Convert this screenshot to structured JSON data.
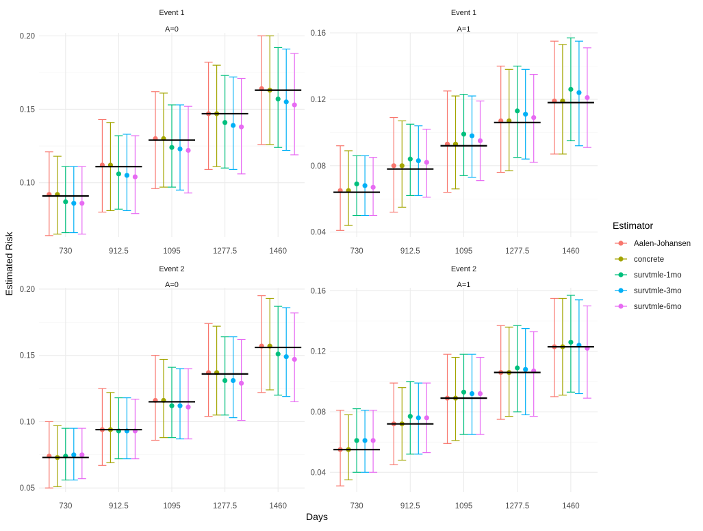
{
  "axis_labels": {
    "x": "Days",
    "y": "Estimated Risk"
  },
  "legend": {
    "title": "Estimator",
    "position": "right",
    "entries": [
      "Aalen-Johansen",
      "concrete",
      "survtmle-1mo",
      "survtmle-3mo",
      "survtmle-6mo"
    ]
  },
  "colors": {
    "Aalen-Johansen": "#F8766D",
    "concrete": "#A3A500",
    "survtmle-1mo": "#00BF7D",
    "survtmle-3mo": "#00B0F6",
    "survtmle-6mo": "#E76BF3",
    "truth_line": "#000000",
    "grid": "#EBEBEB"
  },
  "chart_data": [
    {
      "type": "scatter",
      "facet": {
        "event": "Event 1",
        "group": "A=0"
      },
      "categories": [
        "730",
        "912.5",
        "1095",
        "1277.5",
        "1460"
      ],
      "ylim": [
        0.063,
        0.202
      ],
      "yticks": [
        0.1,
        0.15,
        0.2
      ],
      "ytick_labels": [
        "0.10",
        "0.15",
        "0.20"
      ],
      "grid": true,
      "truth": [
        0.091,
        0.111,
        0.129,
        0.147,
        0.163
      ],
      "series": [
        {
          "name": "Aalen-Johansen",
          "estimate": [
            0.092,
            0.112,
            0.13,
            0.147,
            0.164
          ],
          "lower": [
            0.064,
            0.08,
            0.096,
            0.109,
            0.126
          ],
          "upper": [
            0.121,
            0.143,
            0.162,
            0.182,
            0.2
          ]
        },
        {
          "name": "concrete",
          "estimate": [
            0.092,
            0.112,
            0.13,
            0.147,
            0.163
          ],
          "lower": [
            0.065,
            0.081,
            0.097,
            0.111,
            0.126
          ],
          "upper": [
            0.118,
            0.141,
            0.161,
            0.18,
            0.2
          ]
        },
        {
          "name": "survtmle-1mo",
          "estimate": [
            0.087,
            0.106,
            0.124,
            0.141,
            0.157
          ],
          "lower": [
            0.066,
            0.082,
            0.097,
            0.11,
            0.124
          ],
          "upper": [
            0.111,
            0.132,
            0.153,
            0.173,
            0.192
          ]
        },
        {
          "name": "survtmle-3mo",
          "estimate": [
            0.086,
            0.105,
            0.123,
            0.139,
            0.155
          ],
          "lower": [
            0.066,
            0.081,
            0.095,
            0.109,
            0.122
          ],
          "upper": [
            0.111,
            0.133,
            0.153,
            0.172,
            0.191
          ]
        },
        {
          "name": "survtmle-6mo",
          "estimate": [
            0.086,
            0.104,
            0.122,
            0.138,
            0.153
          ],
          "lower": [
            0.065,
            0.079,
            0.093,
            0.106,
            0.119
          ],
          "upper": [
            0.111,
            0.132,
            0.152,
            0.171,
            0.188
          ]
        }
      ]
    },
    {
      "type": "scatter",
      "facet": {
        "event": "Event 1",
        "group": "A=1"
      },
      "categories": [
        "730",
        "912.5",
        "1095",
        "1277.5",
        "1460"
      ],
      "ylim": [
        0.037,
        0.16
      ],
      "yticks": [
        0.04,
        0.08,
        0.12,
        0.16
      ],
      "ytick_labels": [
        "0.04",
        "0.08",
        "0.12",
        "0.16"
      ],
      "grid": true,
      "truth": [
        0.064,
        0.078,
        0.092,
        0.106,
        0.118
      ],
      "series": [
        {
          "name": "Aalen-Johansen",
          "estimate": [
            0.065,
            0.08,
            0.093,
            0.107,
            0.119
          ],
          "lower": [
            0.041,
            0.052,
            0.064,
            0.076,
            0.087
          ],
          "upper": [
            0.092,
            0.109,
            0.125,
            0.14,
            0.155
          ]
        },
        {
          "name": "concrete",
          "estimate": [
            0.065,
            0.08,
            0.093,
            0.107,
            0.119
          ],
          "lower": [
            0.044,
            0.055,
            0.066,
            0.077,
            0.087
          ],
          "upper": [
            0.089,
            0.107,
            0.122,
            0.138,
            0.153
          ]
        },
        {
          "name": "survtmle-1mo",
          "estimate": [
            0.069,
            0.084,
            0.099,
            0.113,
            0.126
          ],
          "lower": [
            0.05,
            0.062,
            0.074,
            0.085,
            0.095
          ],
          "upper": [
            0.086,
            0.105,
            0.123,
            0.14,
            0.157
          ]
        },
        {
          "name": "survtmle-3mo",
          "estimate": [
            0.068,
            0.083,
            0.098,
            0.111,
            0.124
          ],
          "lower": [
            0.05,
            0.062,
            0.073,
            0.084,
            0.092
          ],
          "upper": [
            0.086,
            0.104,
            0.122,
            0.138,
            0.155
          ]
        },
        {
          "name": "survtmle-6mo",
          "estimate": [
            0.067,
            0.082,
            0.095,
            0.109,
            0.121
          ],
          "lower": [
            0.05,
            0.061,
            0.071,
            0.082,
            0.091
          ],
          "upper": [
            0.085,
            0.102,
            0.119,
            0.135,
            0.151
          ]
        }
      ]
    },
    {
      "type": "scatter",
      "facet": {
        "event": "Event 2",
        "group": "A=0"
      },
      "categories": [
        "730",
        "912.5",
        "1095",
        "1277.5",
        "1460"
      ],
      "ylim": [
        0.047,
        0.201
      ],
      "yticks": [
        0.05,
        0.1,
        0.15,
        0.2
      ],
      "ytick_labels": [
        "0.05",
        "0.10",
        "0.15",
        "0.20"
      ],
      "grid": true,
      "truth": [
        0.073,
        0.094,
        0.115,
        0.136,
        0.156
      ],
      "series": [
        {
          "name": "Aalen-Johansen",
          "estimate": [
            0.074,
            0.094,
            0.116,
            0.137,
            0.157
          ],
          "lower": [
            0.05,
            0.067,
            0.086,
            0.104,
            0.122
          ],
          "upper": [
            0.1,
            0.125,
            0.15,
            0.174,
            0.195
          ]
        },
        {
          "name": "concrete",
          "estimate": [
            0.073,
            0.094,
            0.116,
            0.137,
            0.157
          ],
          "lower": [
            0.051,
            0.069,
            0.088,
            0.105,
            0.124
          ],
          "upper": [
            0.097,
            0.122,
            0.147,
            0.172,
            0.193
          ]
        },
        {
          "name": "survtmle-1mo",
          "estimate": [
            0.074,
            0.093,
            0.112,
            0.131,
            0.151
          ],
          "lower": [
            0.056,
            0.072,
            0.088,
            0.105,
            0.12
          ],
          "upper": [
            0.095,
            0.118,
            0.141,
            0.164,
            0.187
          ]
        },
        {
          "name": "survtmle-3mo",
          "estimate": [
            0.075,
            0.093,
            0.112,
            0.131,
            0.149
          ],
          "lower": [
            0.056,
            0.072,
            0.087,
            0.103,
            0.119
          ],
          "upper": [
            0.095,
            0.118,
            0.14,
            0.164,
            0.186
          ]
        },
        {
          "name": "survtmle-6mo",
          "estimate": [
            0.075,
            0.093,
            0.111,
            0.129,
            0.147
          ],
          "lower": [
            0.057,
            0.072,
            0.087,
            0.101,
            0.115
          ],
          "upper": [
            0.095,
            0.117,
            0.14,
            0.162,
            0.182
          ]
        }
      ]
    },
    {
      "type": "scatter",
      "facet": {
        "event": "Event 2",
        "group": "A=1"
      },
      "categories": [
        "730",
        "912.5",
        "1095",
        "1277.5",
        "1460"
      ],
      "ylim": [
        0.027,
        0.162
      ],
      "yticks": [
        0.04,
        0.08,
        0.12,
        0.16
      ],
      "ytick_labels": [
        "0.04",
        "0.08",
        "0.12",
        "0.16"
      ],
      "grid": true,
      "truth": [
        0.055,
        0.072,
        0.089,
        0.106,
        0.123
      ],
      "series": [
        {
          "name": "Aalen-Johansen",
          "estimate": [
            0.055,
            0.072,
            0.089,
            0.106,
            0.123
          ],
          "lower": [
            0.031,
            0.045,
            0.059,
            0.075,
            0.09
          ],
          "upper": [
            0.081,
            0.099,
            0.118,
            0.137,
            0.155
          ]
        },
        {
          "name": "concrete",
          "estimate": [
            0.055,
            0.072,
            0.089,
            0.106,
            0.123
          ],
          "lower": [
            0.035,
            0.048,
            0.061,
            0.077,
            0.091
          ],
          "upper": [
            0.078,
            0.096,
            0.116,
            0.136,
            0.155
          ]
        },
        {
          "name": "survtmle-1mo",
          "estimate": [
            0.061,
            0.077,
            0.093,
            0.109,
            0.126
          ],
          "lower": [
            0.04,
            0.052,
            0.065,
            0.08,
            0.093
          ],
          "upper": [
            0.082,
            0.1,
            0.118,
            0.137,
            0.157
          ]
        },
        {
          "name": "survtmle-3mo",
          "estimate": [
            0.061,
            0.076,
            0.092,
            0.108,
            0.124
          ],
          "lower": [
            0.04,
            0.052,
            0.065,
            0.078,
            0.092
          ],
          "upper": [
            0.081,
            0.099,
            0.118,
            0.135,
            0.154
          ]
        },
        {
          "name": "survtmle-6mo",
          "estimate": [
            0.061,
            0.076,
            0.092,
            0.107,
            0.122
          ],
          "lower": [
            0.04,
            0.053,
            0.065,
            0.077,
            0.089
          ],
          "upper": [
            0.081,
            0.099,
            0.116,
            0.133,
            0.15
          ]
        }
      ]
    }
  ]
}
